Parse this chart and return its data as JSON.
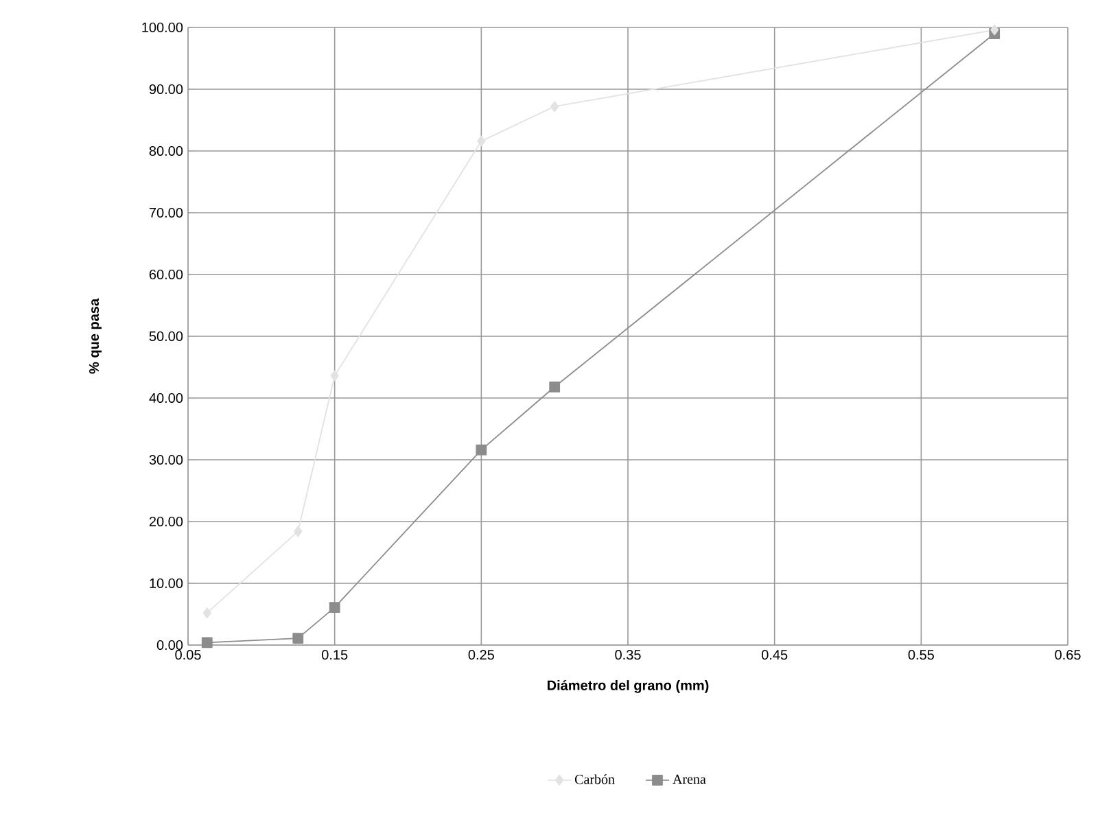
{
  "chart_data": {
    "type": "line",
    "xlabel": "Diámetro del grano (mm)",
    "ylabel": "% que pasa",
    "xlim": [
      0.05,
      0.65
    ],
    "xticks": [
      0.05,
      0.15,
      0.25,
      0.35,
      0.45,
      0.55,
      0.65
    ],
    "ylim": [
      0,
      100
    ],
    "yticks": [
      {
        "value": 0,
        "label": "0.00"
      },
      {
        "value": 10,
        "label": "10.00"
      },
      {
        "value": 20,
        "label": "20.00"
      },
      {
        "value": 30,
        "label": "30.00"
      },
      {
        "value": 40,
        "label": "40.00"
      },
      {
        "value": 50,
        "label": "50.00"
      },
      {
        "value": 60,
        "label": "60.00"
      },
      {
        "value": 70,
        "label": "70.00"
      },
      {
        "value": 80,
        "label": "80.00"
      },
      {
        "value": 90,
        "label": "90.00"
      },
      {
        "value": 100,
        "label": "100.00"
      }
    ],
    "grid": true,
    "legend": "bottom",
    "series": [
      {
        "name": "Carbón",
        "color": "#e2e2e2",
        "marker": "diamond",
        "x": [
          0.063,
          0.125,
          0.15,
          0.25,
          0.3,
          0.6
        ],
        "values": [
          5.2,
          18.4,
          43.6,
          81.6,
          87.2,
          99.6
        ]
      },
      {
        "name": "Arena",
        "color": "#8c8c8c",
        "marker": "square",
        "x": [
          0.063,
          0.125,
          0.15,
          0.25,
          0.3,
          0.6
        ],
        "values": [
          0.4,
          1.1,
          6.1,
          31.6,
          41.8,
          99.0
        ]
      }
    ]
  }
}
